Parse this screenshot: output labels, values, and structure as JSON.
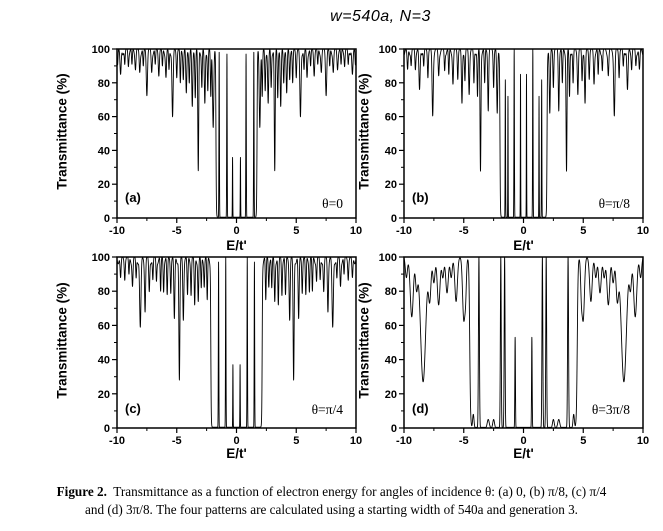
{
  "title": "w=540a, N=3",
  "caption": {
    "label": "Figure 2.",
    "line1": "Transmittance as a function of electron energy for angles of incidence θ: (a) 0, (b) π/8, (c) π/4",
    "line2": "and (d) 3π/8. The four patterns are calculated using a starting width of 540a and generation 3."
  },
  "colors": {
    "curve": "#000000",
    "background": "#ffffff",
    "text": "#000000"
  },
  "chart_data": [
    {
      "type": "line",
      "panel": "(a)",
      "theta": "θ=0",
      "xlabel": "E/t'",
      "ylabel": "Transmittance (%)",
      "x_range": [
        -10,
        10
      ],
      "y_range": [
        0,
        100
      ],
      "xticks": [
        -10,
        -5,
        0,
        5,
        10
      ],
      "yticks": [
        0,
        20,
        40,
        60,
        80,
        100
      ],
      "xticks_minor_step": 2.5,
      "yticks_minor_step": 10,
      "grid": false,
      "features": {
        "symmetric_about_zero": true,
        "gap": {
          "halfwidth": 1.72,
          "floor_percent": 0.5,
          "wall_width": 0.018
        },
        "resonance_spikes": [
          [
            0.33,
            36,
            0.022
          ],
          [
            0.8,
            97,
            0.028
          ],
          [
            1.45,
            98,
            0.028
          ]
        ],
        "floor_bumps": [],
        "dips": [
          [
            1.95,
            45,
            0.07
          ],
          [
            2.15,
            28,
            0.05
          ],
          [
            2.4,
            24,
            0.05
          ],
          [
            2.65,
            32,
            0.06
          ],
          [
            2.9,
            22,
            0.05
          ],
          [
            3.2,
            72,
            0.055
          ],
          [
            3.45,
            27,
            0.05
          ],
          [
            3.7,
            34,
            0.06
          ],
          [
            3.95,
            18,
            0.05
          ],
          [
            4.2,
            26,
            0.06
          ],
          [
            4.45,
            16,
            0.05
          ],
          [
            4.7,
            20,
            0.05
          ],
          [
            5.0,
            14,
            0.05
          ],
          [
            5.35,
            40,
            0.07
          ],
          [
            5.65,
            12,
            0.05
          ],
          [
            5.9,
            16,
            0.06
          ],
          [
            6.2,
            10,
            0.05
          ],
          [
            6.5,
            13,
            0.06
          ],
          [
            6.8,
            9,
            0.05
          ],
          [
            7.1,
            13,
            0.06
          ],
          [
            7.5,
            25,
            0.07
          ],
          [
            7.8,
            10,
            0.05
          ],
          [
            8.1,
            13,
            0.06
          ],
          [
            8.45,
            10,
            0.06
          ],
          [
            8.75,
            9,
            0.05
          ],
          [
            9.05,
            8,
            0.05
          ],
          [
            9.35,
            9,
            0.05
          ],
          [
            9.7,
            15,
            0.07
          ],
          [
            9.95,
            7,
            0.04
          ]
        ],
        "baseline_ripple": {
          "period": 0.5,
          "depth_percent": 3.5
        }
      }
    },
    {
      "type": "line",
      "panel": "(b)",
      "theta": "θ=π/8",
      "xlabel": "E/t'",
      "ylabel": "Transmittance (%)",
      "x_range": [
        -10,
        10
      ],
      "y_range": [
        0,
        100
      ],
      "xticks": [
        -10,
        -5,
        0,
        5,
        10
      ],
      "yticks": [
        0,
        20,
        40,
        60,
        80,
        100
      ],
      "xticks_minor_step": 2.5,
      "yticks_minor_step": 10,
      "grid": false,
      "features": {
        "symmetric_about_zero": true,
        "gap": {
          "halfwidth": 1.97,
          "floor_percent": 0.5,
          "wall_width": 0.018
        },
        "resonance_spikes": [
          [
            0.25,
            85,
            0.02
          ],
          [
            0.78,
            100,
            0.028
          ],
          [
            1.3,
            72,
            0.02
          ],
          [
            1.52,
            82,
            0.025
          ]
        ],
        "floor_bumps": [],
        "dips": [
          [
            2.2,
            38,
            0.06
          ],
          [
            2.5,
            20,
            0.05
          ],
          [
            2.95,
            35,
            0.055
          ],
          [
            3.25,
            20,
            0.05
          ],
          [
            3.6,
            72,
            0.055
          ],
          [
            3.85,
            28,
            0.05
          ],
          [
            4.15,
            20,
            0.05
          ],
          [
            4.55,
            25,
            0.06
          ],
          [
            4.9,
            18,
            0.05
          ],
          [
            5.15,
            32,
            0.06
          ],
          [
            5.5,
            15,
            0.05
          ],
          [
            5.9,
            20,
            0.06
          ],
          [
            6.25,
            15,
            0.05
          ],
          [
            6.6,
            12,
            0.05
          ],
          [
            7.1,
            15,
            0.06
          ],
          [
            7.6,
            39,
            0.07
          ],
          [
            8.0,
            14,
            0.05
          ],
          [
            8.35,
            10,
            0.05
          ],
          [
            8.7,
            24,
            0.07
          ],
          [
            9.05,
            10,
            0.05
          ],
          [
            9.4,
            9,
            0.05
          ],
          [
            9.7,
            12,
            0.06
          ]
        ],
        "baseline_ripple": {
          "period": 0.5,
          "depth_percent": 3.5
        }
      }
    },
    {
      "type": "line",
      "panel": "(c)",
      "theta": "θ=π/4",
      "xlabel": "E/t'",
      "ylabel": "Transmittance (%)",
      "x_range": [
        -10,
        10
      ],
      "y_range": [
        0,
        100
      ],
      "xticks": [
        -10,
        -5,
        0,
        5,
        10
      ],
      "yticks": [
        0,
        20,
        40,
        60,
        80,
        100
      ],
      "xticks_minor_step": 2.5,
      "yticks_minor_step": 10,
      "grid": false,
      "features": {
        "symmetric_about_zero": true,
        "gap": {
          "halfwidth": 2.15,
          "floor_percent": 0.5,
          "wall_width": 0.018
        },
        "resonance_spikes": [
          [
            0.3,
            37,
            0.022
          ],
          [
            0.9,
            100,
            0.028
          ],
          [
            1.5,
            97,
            0.028
          ]
        ],
        "floor_bumps": [],
        "dips": [
          [
            2.45,
            25,
            0.05
          ],
          [
            2.7,
            15,
            0.05
          ],
          [
            2.95,
            18,
            0.05
          ],
          [
            3.2,
            25,
            0.055
          ],
          [
            3.5,
            28,
            0.055
          ],
          [
            3.8,
            20,
            0.05
          ],
          [
            4.1,
            22,
            0.055
          ],
          [
            4.45,
            35,
            0.06
          ],
          [
            4.78,
            72,
            0.06
          ],
          [
            5.2,
            36,
            0.06
          ],
          [
            5.5,
            18,
            0.05
          ],
          [
            5.8,
            22,
            0.055
          ],
          [
            6.1,
            18,
            0.05
          ],
          [
            6.35,
            20,
            0.05
          ],
          [
            6.7,
            13,
            0.05
          ],
          [
            7.0,
            13,
            0.05
          ],
          [
            7.3,
            20,
            0.06
          ],
          [
            7.65,
            30,
            0.06
          ],
          [
            8.05,
            41,
            0.08
          ],
          [
            8.4,
            12,
            0.05
          ],
          [
            8.7,
            16,
            0.06
          ],
          [
            9.0,
            10,
            0.05
          ],
          [
            9.35,
            10,
            0.05
          ],
          [
            9.7,
            12,
            0.06
          ]
        ],
        "baseline_ripple": {
          "period": 0.55,
          "depth_percent": 4
        }
      }
    },
    {
      "type": "line",
      "panel": "(d)",
      "theta": "θ=3π/8",
      "xlabel": "E/t'",
      "ylabel": "Transmittance (%)",
      "x_range": [
        -10,
        10
      ],
      "y_range": [
        0,
        100
      ],
      "xticks": [
        -10,
        -5,
        0,
        5,
        10
      ],
      "yticks": [
        0,
        20,
        40,
        60,
        80,
        100
      ],
      "xticks_minor_step": 2.5,
      "yticks_minor_step": 10,
      "grid": false,
      "features": {
        "symmetric_about_zero": true,
        "gap": {
          "halfwidth": 4.5,
          "floor_percent": 0.4,
          "wall_width": 0.035
        },
        "resonance_spikes": [
          [
            0.7,
            53,
            0.035
          ],
          [
            1.58,
            100,
            0.05
          ],
          [
            1.9,
            100,
            0.05
          ],
          [
            3.73,
            100,
            0.055
          ]
        ],
        "floor_bumps": [
          [
            2.5,
            5,
            0.1
          ],
          [
            2.95,
            5,
            0.12
          ],
          [
            4.2,
            8,
            0.08
          ]
        ],
        "dips": [
          [
            4.85,
            20,
            0.1
          ],
          [
            5.0,
            36,
            0.14
          ],
          [
            5.64,
            26,
            0.15
          ],
          [
            6.05,
            12,
            0.12
          ],
          [
            6.4,
            21,
            0.15
          ],
          [
            6.75,
            12,
            0.12
          ],
          [
            7.1,
            28,
            0.16
          ],
          [
            7.5,
            15,
            0.13
          ],
          [
            7.85,
            25,
            0.15
          ],
          [
            8.4,
            73,
            0.3
          ],
          [
            8.95,
            18,
            0.13
          ],
          [
            9.35,
            35,
            0.18
          ],
          [
            9.8,
            12,
            0.12
          ]
        ],
        "baseline_ripple": {
          "period": 0.5,
          "depth_percent": 0
        }
      }
    }
  ]
}
